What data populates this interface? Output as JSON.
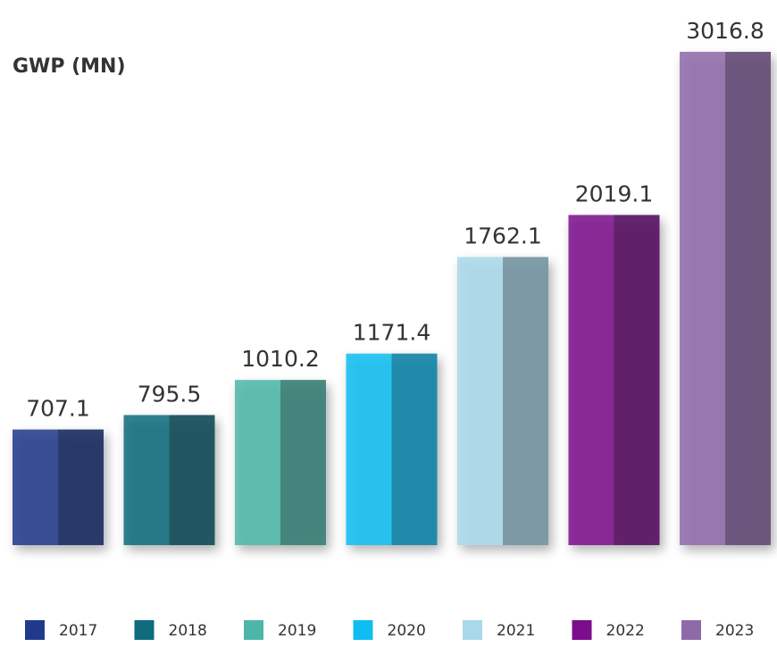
{
  "chart_data": {
    "type": "bar",
    "title": "GWP (MN)",
    "categories": [
      "2017",
      "2018",
      "2019",
      "2020",
      "2021",
      "2022",
      "2023"
    ],
    "values": [
      707.1,
      795.5,
      1010.2,
      1171.4,
      1762.1,
      2019.1,
      3016.8
    ],
    "colors": [
      "#1f3a8a",
      "#0f6b7d",
      "#4db6a8",
      "#10bdf0",
      "#a8d8ea",
      "#7b0e8c",
      "#8e6aa8"
    ]
  }
}
